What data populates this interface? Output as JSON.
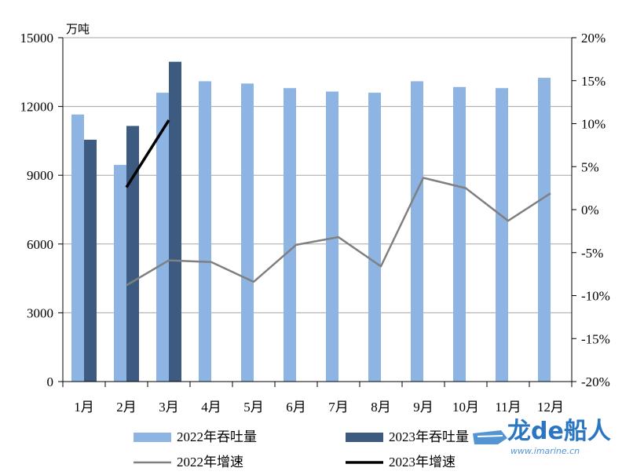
{
  "chart_data": {
    "type": "bar",
    "unit_label": "万吨",
    "categories": [
      "1月",
      "2月",
      "3月",
      "4月",
      "5月",
      "6月",
      "7月",
      "8月",
      "9月",
      "10月",
      "11月",
      "12月"
    ],
    "y_left": {
      "min": 0,
      "max": 15000,
      "ticks": [
        "0",
        "3000",
        "6000",
        "9000",
        "12000",
        "15000"
      ]
    },
    "y_right": {
      "min": -20,
      "max": 20,
      "ticks": [
        "-20%",
        "-15%",
        "-10%",
        "-5%",
        "0%",
        "5%",
        "10%",
        "15%",
        "20%"
      ]
    },
    "grid": true,
    "legend_position": "bottom",
    "series": [
      {
        "name": "2022年吞吐量",
        "type": "bar",
        "axis": "left",
        "color": "#8db4e2",
        "values": [
          11650,
          9450,
          12600,
          13100,
          13000,
          12800,
          12650,
          12600,
          13100,
          12850,
          12800,
          13250
        ]
      },
      {
        "name": "2023年吞吐量",
        "type": "bar",
        "axis": "left",
        "color": "#3d5a80",
        "values": [
          10550,
          11150,
          13950,
          null,
          null,
          null,
          null,
          null,
          null,
          null,
          null,
          null
        ]
      },
      {
        "name": "2022年增速",
        "type": "line",
        "axis": "right",
        "color": "#808080",
        "values": [
          null,
          -8.8,
          -5.9,
          -6.1,
          -8.4,
          -4.1,
          -3.2,
          -6.6,
          3.7,
          2.5,
          -1.3,
          1.9
        ]
      },
      {
        "name": "2023年增速",
        "type": "line",
        "axis": "right",
        "color": "#000000",
        "values": [
          null,
          2.6,
          10.4,
          null,
          null,
          null,
          null,
          null,
          null,
          null,
          null,
          null
        ]
      }
    ]
  },
  "watermark": {
    "brand": "龙de船人",
    "url": "www.imarine.cn"
  }
}
